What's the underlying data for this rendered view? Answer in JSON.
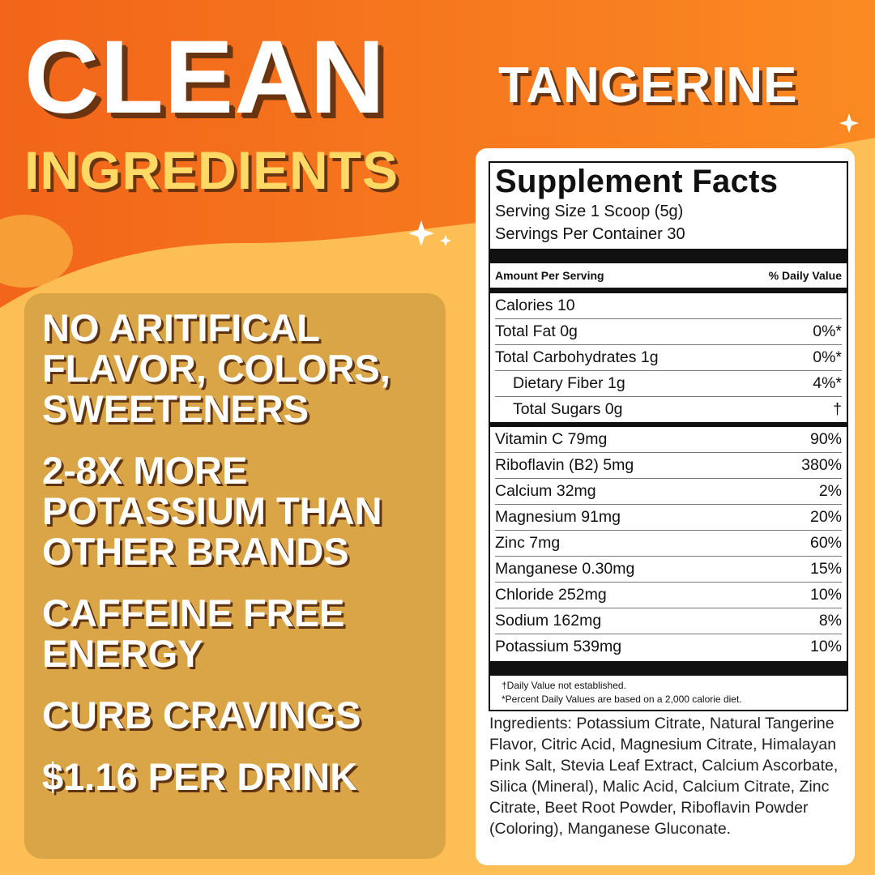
{
  "headline": {
    "line1": "CLEAN",
    "line2": "INGREDIENTS"
  },
  "flavor": "TANGERINE",
  "benefits": [
    "NO ARITIFICAL FLAVOR, COLORS, SWEETENERS",
    "2-8X MORE POTASSIUM THAN OTHER BRANDS",
    "CAFFEINE FREE ENERGY",
    "CURB CRAVINGS",
    "$1.16 PER DRINK"
  ],
  "facts": {
    "title": "Supplement Facts",
    "serving_size": "Serving Size 1 Scoop (5g)",
    "servings_per_container": "Servings Per Container 30",
    "amount_header": "Amount Per Serving",
    "dv_header": "% Daily Value",
    "calories": "Calories 10",
    "macros": [
      {
        "label": "Total Fat 0g",
        "dv": "0%*"
      },
      {
        "label": "Total Carbohydrates 1g",
        "dv": "0%*",
        "sub": [
          {
            "label": "Dietary Fiber 1g",
            "dv": "4%*"
          },
          {
            "label": "Total Sugars 0g",
            "dv": "†"
          }
        ]
      }
    ],
    "nutrients": [
      {
        "label": "Vitamin C 79mg",
        "dv": "90%"
      },
      {
        "label": "Riboflavin (B2) 5mg",
        "dv": "380%"
      },
      {
        "label": "Calcium 32mg",
        "dv": "2%"
      },
      {
        "label": "Magnesium 91mg",
        "dv": "20%"
      },
      {
        "label": "Zinc 7mg",
        "dv": "60%"
      },
      {
        "label": "Manganese 0.30mg",
        "dv": "15%"
      },
      {
        "label": "Chloride 252mg",
        "dv": "10%"
      },
      {
        "label": "Sodium 162mg",
        "dv": "8%"
      },
      {
        "label": "Potassium 539mg",
        "dv": "10%"
      }
    ],
    "footnotes": [
      "†Daily Value not established.",
      "*Percent Daily Values are based on a 2,000 calorie diet."
    ]
  },
  "ingredients": "Ingredients: Potassium Citrate, Natural Tangerine Flavor, Citric Acid, Magnesium Citrate, Himalayan Pink Salt, Stevia Leaf Extract, Calcium Ascorbate, Silica (Mineral), Malic Acid, Calcium Citrate, Zinc Citrate, Beet Root Powder, Riboflavin Powder (Coloring), Manganese Gluconate."
}
